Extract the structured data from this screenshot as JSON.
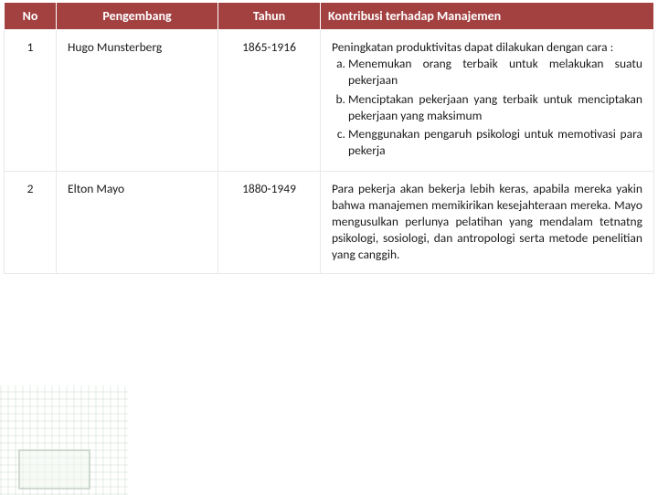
{
  "table": {
    "header_bg": "#a34141",
    "header_fg": "#ffffff",
    "cell_bg": "#ffffff",
    "cell_fg": "#1a1a1a",
    "font_family": "Calibri, Arial, sans-serif",
    "header_fontsize": 14,
    "body_fontsize": 13.5,
    "columns": {
      "no": "No",
      "developer": "Pengembang",
      "year": "Tahun",
      "contribution": "Kontribusi terhadap Manajemen"
    },
    "rows": [
      {
        "no": "1",
        "developer": "Hugo Munsterberg",
        "year": "1865-1916",
        "contribution_intro": "Peningkatan produktivitas dapat dilakukan dengan cara :",
        "contribution_items": [
          "Menemukan orang terbaik untuk melakukan suatu pekerjaan",
          "Menciptakan pekerjaan yang terbaik untuk menciptakan pekerjaan yang maksimum",
          "Menggunakan pengaruh psikologi untuk memotivasi para pekerja"
        ]
      },
      {
        "no": "2",
        "developer": "Elton Mayo",
        "year": "1880-1949",
        "contribution_text": "Para pekerja akan bekerja lebih keras, apabila mereka yakin bahwa manajemen memikirikan kesejahteraan mereka. Mayo mengusulkan perlunya pelatihan yang mendalam tetnatng psikologi, sosiologi, dan antropologi serta metode penelitian yang canggih."
      }
    ]
  }
}
